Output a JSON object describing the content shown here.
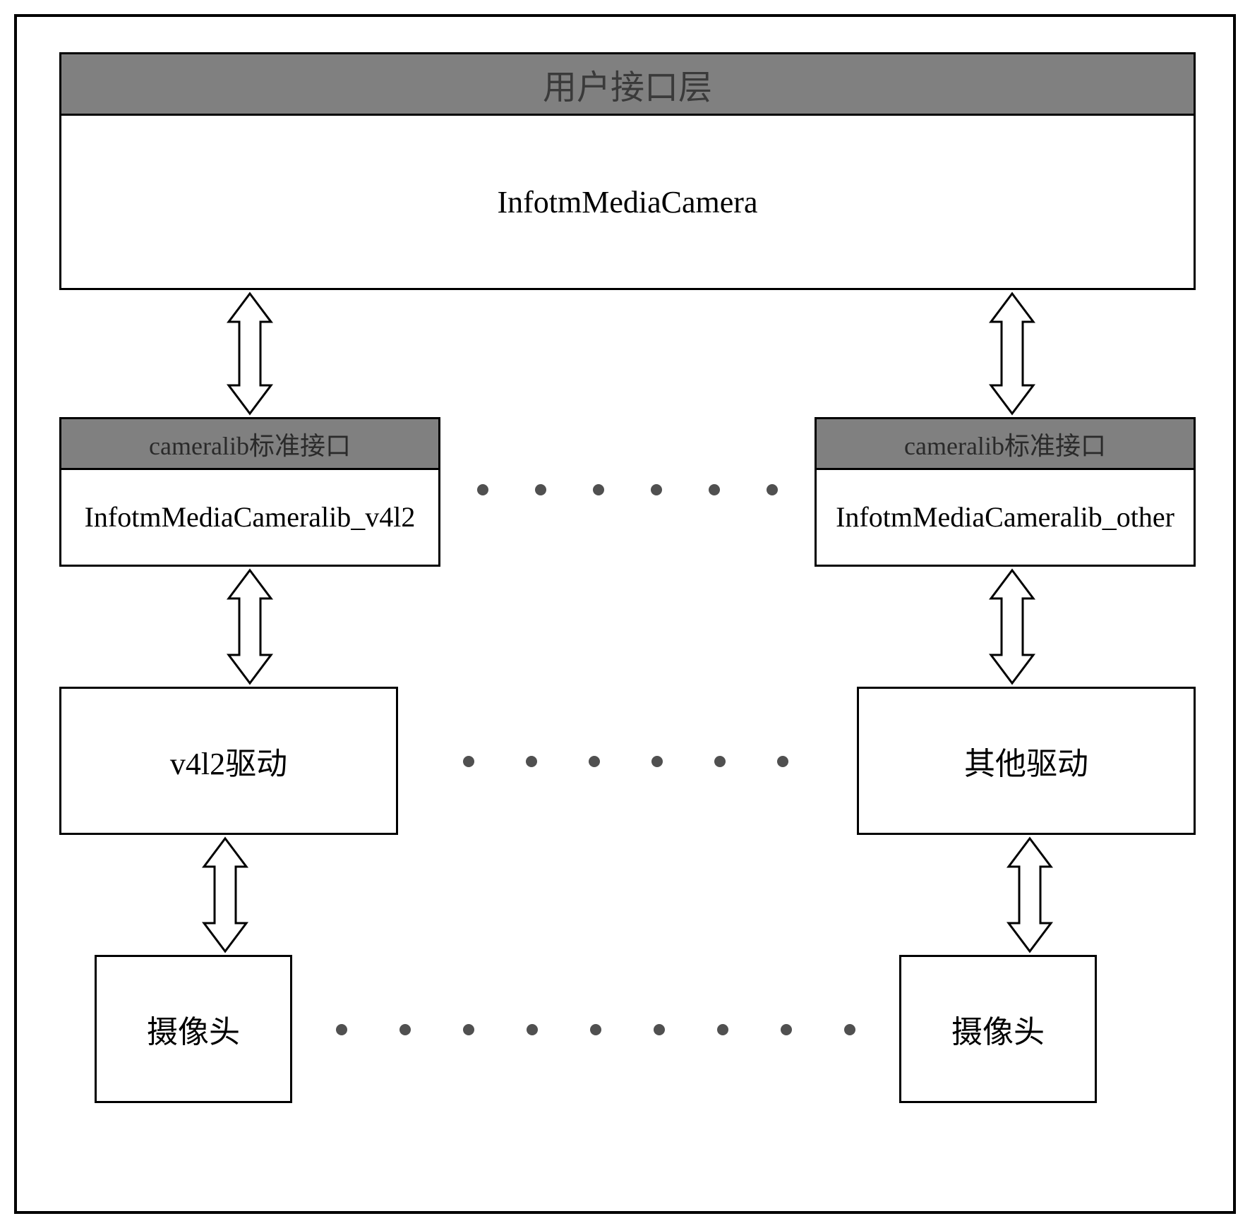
{
  "diagram": {
    "type": "flowchart",
    "background_color": "#ffffff",
    "border_color": "#000000",
    "border_width": 4,
    "header_bg_color": "#808080",
    "box_border_color": "#000000",
    "box_border_width": 3,
    "dot_color": "#505050",
    "dot_radius": 8,
    "arrow_stroke": "#000000",
    "arrow_fill": "#ffffff",
    "arrow_stroke_width": 3
  },
  "layer_top": {
    "header": "用户接口层",
    "body": "InfotmMediaCamera",
    "header_fontsize": 48,
    "body_fontsize": 44
  },
  "layer_mid_left": {
    "header": "cameralib标准接口",
    "body": "InfotmMediaCameralib_v4l2",
    "header_fontsize": 36,
    "body_fontsize": 40
  },
  "layer_mid_right": {
    "header": "cameralib标准接口",
    "body": "InfotmMediaCameralib_other",
    "header_fontsize": 36,
    "body_fontsize": 40
  },
  "driver_left": "v4l2驱动",
  "driver_right": "其他驱动",
  "camera_left": "摄像头",
  "camera_right": "摄像头",
  "driver_fontsize": 42,
  "camera_fontsize": 42,
  "dots_row1_count": 6,
  "dots_row2_count": 6,
  "dots_row3_count": 9
}
